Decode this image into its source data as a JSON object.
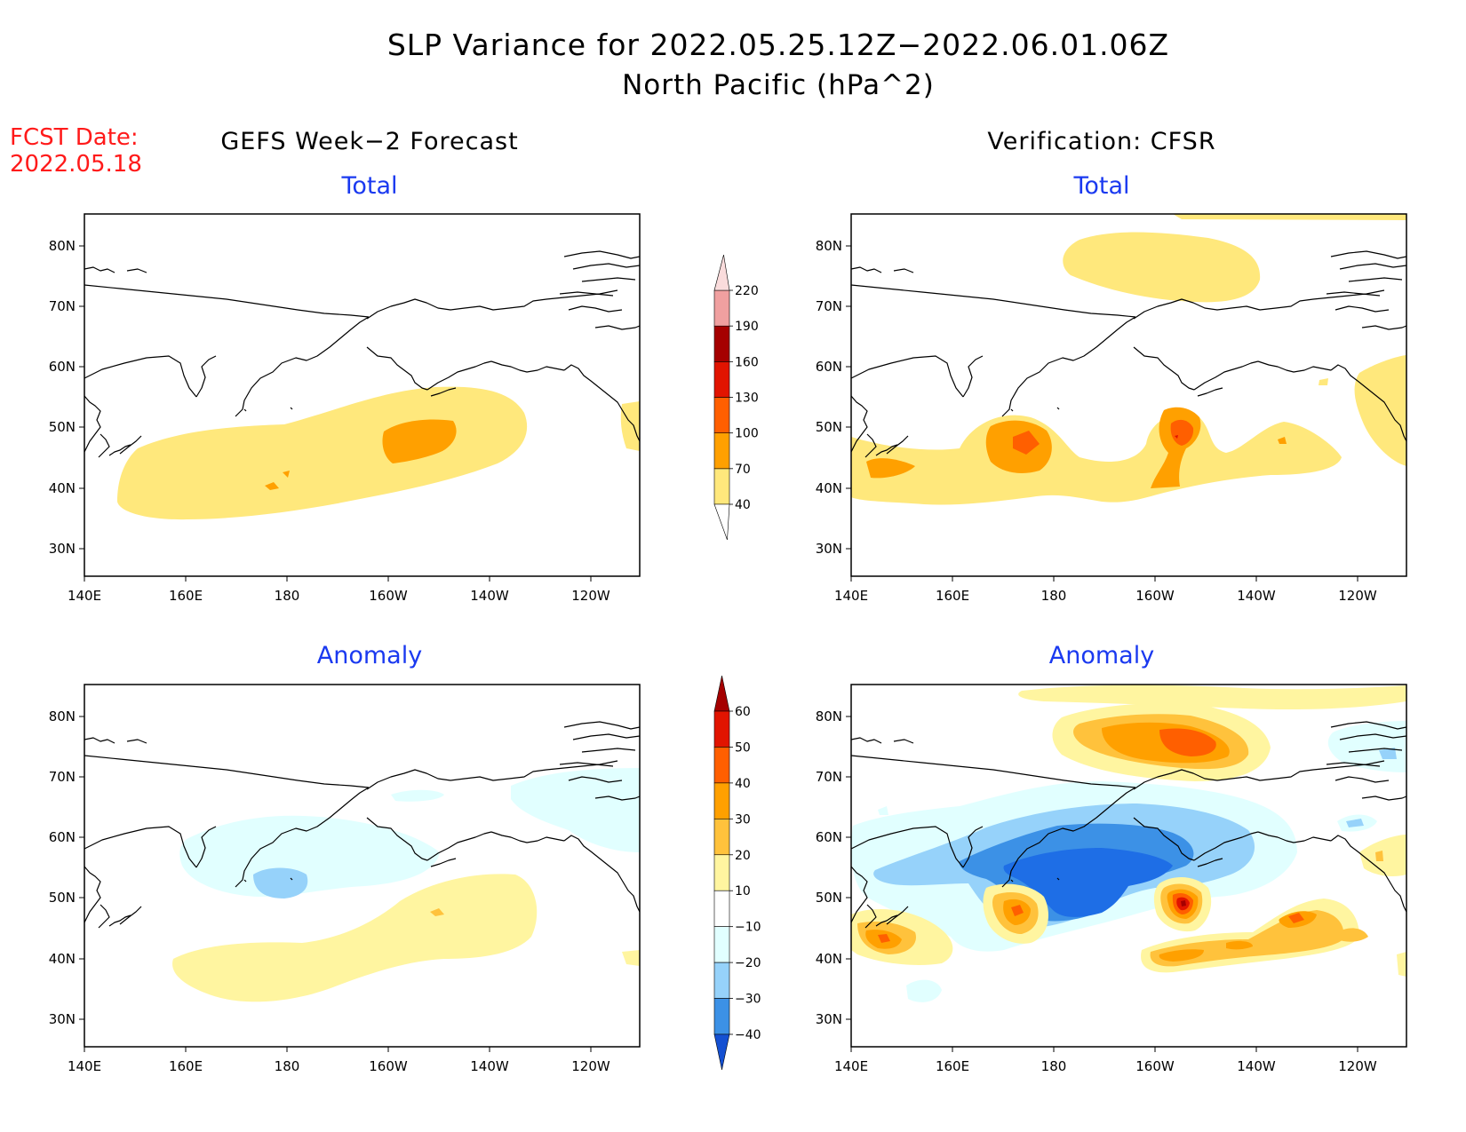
{
  "header": {
    "title": "SLP Variance for 2022.05.25.12Z−2022.06.01.06Z",
    "subtitle": "North Pacific (hPa^2)"
  },
  "fcst": {
    "label": "FCST Date:",
    "date": "2022.05.18"
  },
  "columns": {
    "left": "GEFS Week−2 Forecast",
    "right": "Verification: CFSR"
  },
  "panel_titles": {
    "top_left": "Total",
    "top_right": "Total",
    "bottom_left": "Anomaly",
    "bottom_right": "Anomaly"
  },
  "axes": {
    "lon_labels": [
      "140E",
      "160E",
      "180",
      "160W",
      "140W",
      "120W"
    ],
    "lat_labels": [
      "80N",
      "70N",
      "60N",
      "50N",
      "40N",
      "30N"
    ]
  },
  "colorbar_total": {
    "levels": [
      "40",
      "70",
      "100",
      "130",
      "160",
      "190",
      "220"
    ],
    "colors": [
      "#ffe87c",
      "#ffa000",
      "#ff5f00",
      "#e11400",
      "#a50000",
      "#f0a0a0",
      "#fadcdc"
    ]
  },
  "colorbar_anomaly": {
    "levels": [
      "60",
      "50",
      "40",
      "30",
      "20",
      "10",
      "−10",
      "−20",
      "−30",
      "−40"
    ],
    "colors_top_to_bottom": [
      "#a50000",
      "#e11400",
      "#ff5f00",
      "#ffa000",
      "#ffc23c",
      "#fff5a0",
      "#ffffff",
      "#e1ffff",
      "#96d2fa",
      "#3c91e6",
      "#1e6ee6",
      "#1450d2"
    ]
  },
  "palette": {
    "coast": "#000000",
    "frame": "#000000",
    "title_blue": "#1a39f0",
    "fcst_red": "#ff1a1a"
  }
}
